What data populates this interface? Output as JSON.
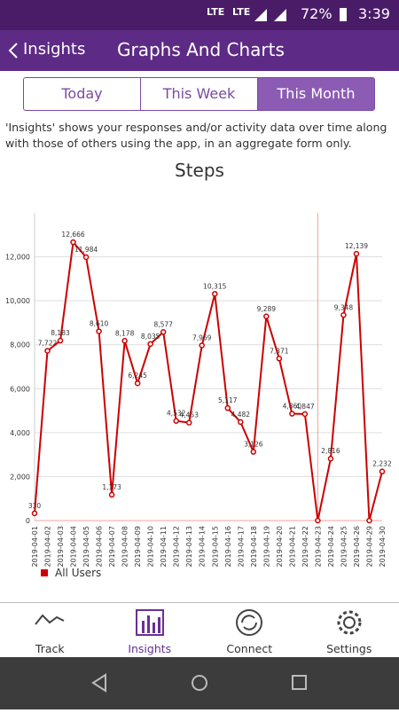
{
  "status_bar": {
    "network": [
      "LTE",
      "LTE"
    ],
    "battery": "72%",
    "time": "3:39"
  },
  "header": {
    "back": "Insights",
    "title": "Graphs And Charts"
  },
  "tabs": [
    "Today",
    "This Week",
    "This Month"
  ],
  "selected_tab": 2,
  "description": "'Insights' shows your responses and/or activity data over time along with those of others using the app, in an aggregate form only.",
  "chart_data": {
    "type": "line",
    "title": "Steps",
    "categories": [
      "2019-04-01",
      "2019-04-02",
      "2019-04-03",
      "2019-04-04",
      "2019-04-05",
      "2019-04-06",
      "2019-04-07",
      "2019-04-08",
      "2019-04-09",
      "2019-04-10",
      "2019-04-11",
      "2019-04-12",
      "2019-04-13",
      "2019-04-14",
      "2019-04-15",
      "2019-04-16",
      "2019-04-17",
      "2019-04-18",
      "2019-04-19",
      "2019-04-20",
      "2019-04-21",
      "2019-04-22",
      "2019-04-23",
      "2019-04-24",
      "2019-04-25",
      "2019-04-26",
      "2019-04-29",
      "2019-04-30"
    ],
    "series": [
      {
        "name": "All Users",
        "color": "#cc0000",
        "values": [
          330,
          7722,
          8183,
          12666,
          11984,
          8610,
          1173,
          8178,
          6245,
          8035,
          8577,
          4532,
          4453,
          7969,
          10315,
          5117,
          4482,
          3126,
          9289,
          7371,
          4860,
          4847,
          0,
          2816,
          9348,
          12139,
          0,
          2232
        ],
        "value_labels": [
          "330",
          "7,722",
          "8,183",
          "12,666",
          "11,984",
          "8,610",
          "1,173",
          "8,178",
          "6,245",
          "8,035",
          "8,577",
          "4,532",
          "4,453",
          "7,969",
          "10,315",
          "5,117",
          "4,482",
          "3,126",
          "9,289",
          "7,371",
          "4,860",
          "4,847",
          null,
          "2,816",
          "9,348",
          "12,139",
          null,
          "2,232"
        ]
      }
    ],
    "ylim": [
      0,
      14000
    ],
    "yticks": [
      0,
      {
        "value": 2000,
        "label": "2,000"
      },
      {
        "value": 4000,
        "label": "4,000"
      },
      {
        "value": 6000,
        "label": "6,000"
      },
      {
        "value": 8000,
        "label": "8,000"
      },
      {
        "value": 10000,
        "label": "10,000"
      },
      {
        "value": 12000,
        "label": "12,000"
      }
    ],
    "grid": true,
    "highlight_category": "2019-04-23",
    "legend": "bottom-left"
  },
  "nav": [
    "Track",
    "Insights",
    "Connect",
    "Settings"
  ],
  "selected_nav": 1
}
